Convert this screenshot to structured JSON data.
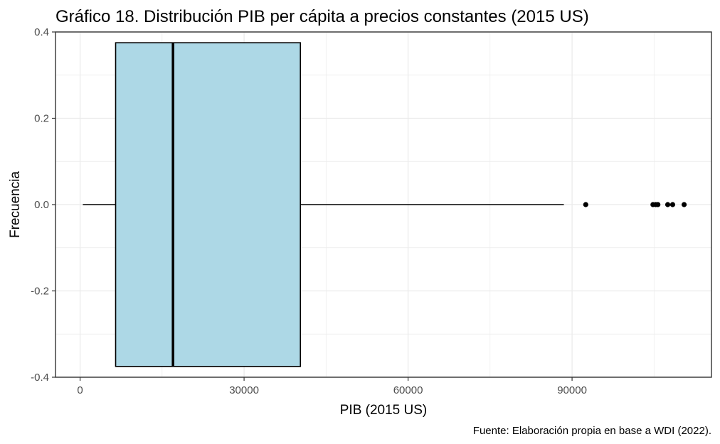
{
  "chart_data": {
    "type": "boxplot",
    "orientation": "horizontal",
    "title": "Gráfico 18. Distribución PIB per cápita a precios constantes (2015 US)",
    "xlabel": "PIB (2015 US)",
    "ylabel": "Frecuencia",
    "caption": "Fuente: Elaboración propia en base a WDI (2022).",
    "xlim": [
      -4500,
      115500
    ],
    "ylim": [
      -0.4,
      0.4
    ],
    "x_ticks": [
      {
        "value": 0,
        "label": "0"
      },
      {
        "value": 30000,
        "label": "30000"
      },
      {
        "value": 60000,
        "label": "60000"
      },
      {
        "value": 90000,
        "label": "90000"
      }
    ],
    "y_ticks": [
      {
        "value": 0.4,
        "label": "0.4"
      },
      {
        "value": 0.2,
        "label": "0.2"
      },
      {
        "value": 0.0,
        "label": "0.0"
      },
      {
        "value": -0.2,
        "label": "-0.2"
      },
      {
        "value": -0.4,
        "label": "-0.4"
      }
    ],
    "box": {
      "min": 500,
      "q1": 6500,
      "median": 17000,
      "q3": 40300,
      "max": 88500,
      "y_low": -0.375,
      "y_high": 0.375,
      "fill": "#add8e6"
    },
    "outliers": [
      92500,
      104800,
      105300,
      105700,
      107500,
      108400,
      110500
    ],
    "grid": true,
    "colors": {
      "grid": "#ebebeb",
      "box_fill": "#add8e6",
      "stroke": "#000000",
      "tick_label": "#4d4d4d"
    }
  }
}
